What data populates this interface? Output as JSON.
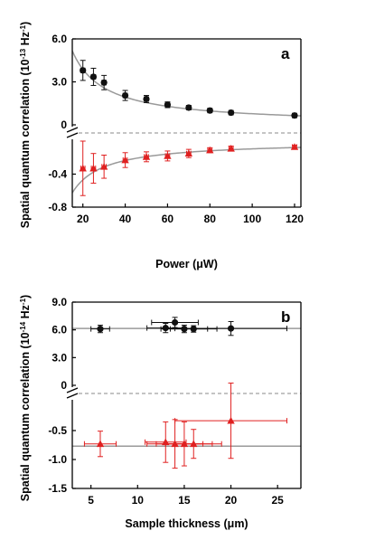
{
  "chart_data": [
    {
      "panel_label": "a",
      "type": "scatter",
      "title": "",
      "xlabel_parts": [
        "Power (",
        "μ",
        "W)"
      ],
      "ylabel_parts": [
        "Spatial quantum correlation (10",
        "-13",
        " Hz",
        "-1",
        ")"
      ],
      "xlim": [
        15,
        123
      ],
      "x_ticks": [
        "20",
        "40",
        "60",
        "80",
        "100",
        "120"
      ],
      "y_upper": {
        "ylim": [
          0,
          6.0
        ],
        "ticks": [
          "6.0",
          "3.0",
          "0"
        ]
      },
      "y_lower": {
        "ylim": [
          -0.8,
          0
        ],
        "ticks": [
          "-0.4",
          "-0.8"
        ]
      },
      "series": [
        {
          "color": "#111111",
          "marker": "circle",
          "segment": "upper",
          "x": [
            20,
            25,
            30,
            40,
            50,
            60,
            70,
            80,
            90,
            120
          ],
          "y": [
            3.8,
            3.35,
            2.95,
            2.05,
            1.8,
            1.4,
            1.2,
            1.0,
            0.85,
            0.65
          ],
          "yerr": [
            0.7,
            0.6,
            0.5,
            0.35,
            0.25,
            0.2,
            0.15,
            0.12,
            0.1,
            0.1
          ],
          "xerr": [
            1,
            1,
            1,
            1,
            1,
            1,
            1,
            1,
            1,
            1
          ]
        },
        {
          "color": "#e02020",
          "marker": "triangle",
          "segment": "lower",
          "x": [
            20,
            25,
            30,
            40,
            50,
            60,
            70,
            80,
            90,
            120
          ],
          "y": [
            -0.33,
            -0.33,
            -0.31,
            -0.23,
            -0.19,
            -0.18,
            -0.15,
            -0.11,
            -0.09,
            -0.07
          ],
          "yerr": [
            0.33,
            0.18,
            0.14,
            0.09,
            0.06,
            0.06,
            0.05,
            0.03,
            0.03,
            0.02
          ],
          "xerr": [
            1,
            1,
            1,
            1,
            1,
            1,
            1,
            1,
            1,
            1
          ]
        }
      ],
      "fit_curves": [
        {
          "segment": "upper",
          "color": "#9a9a9a",
          "form": "A/x",
          "A": 77.5
        },
        {
          "segment": "lower",
          "color": "#9a9a9a",
          "form": "A/x",
          "A": -9.4
        }
      ]
    },
    {
      "panel_label": "b",
      "type": "scatter",
      "title": "",
      "xlabel_parts": [
        "Sample thickness (",
        "μ",
        "m)"
      ],
      "ylabel_parts": [
        "Spatial quantum correlation (10",
        "-14",
        " Hz",
        "-1",
        ")"
      ],
      "xlim": [
        3,
        27.5
      ],
      "x_ticks": [
        "5",
        "10",
        "15",
        "20",
        "25"
      ],
      "y_upper": {
        "ylim": [
          0,
          9.0
        ],
        "ticks": [
          "9.0",
          "6.0",
          "3.0",
          "0"
        ]
      },
      "y_lower": {
        "ylim": [
          -1.5,
          0
        ],
        "ticks": [
          "-0.5",
          "-1.0",
          "-1.5"
        ]
      },
      "series": [
        {
          "color": "#111111",
          "marker": "circle",
          "segment": "upper",
          "x": [
            6,
            13,
            14,
            15,
            16,
            20
          ],
          "y": [
            6.1,
            6.2,
            6.8,
            6.1,
            6.1,
            6.15
          ],
          "yerr": [
            0.4,
            0.5,
            0.55,
            0.4,
            0.35,
            0.75
          ],
          "xerr": [
            1,
            2,
            2.5,
            2.5,
            2.5,
            6
          ]
        },
        {
          "color": "#e02020",
          "marker": "triangle",
          "segment": "lower",
          "x": [
            6,
            13,
            14,
            15,
            16,
            20
          ],
          "y": [
            -0.73,
            -0.7,
            -0.73,
            -0.73,
            -0.73,
            -0.33
          ],
          "yerr": [
            0.22,
            0.35,
            0.42,
            0.38,
            0.25,
            0.65
          ],
          "xerr": [
            1.7,
            2.2,
            3,
            3,
            3,
            6
          ]
        }
      ],
      "fit_lines": [
        {
          "segment": "upper",
          "color": "#9a9a9a",
          "y": 6.15
        },
        {
          "segment": "lower",
          "color": "#9a9a9a",
          "y": -0.77
        }
      ]
    }
  ]
}
